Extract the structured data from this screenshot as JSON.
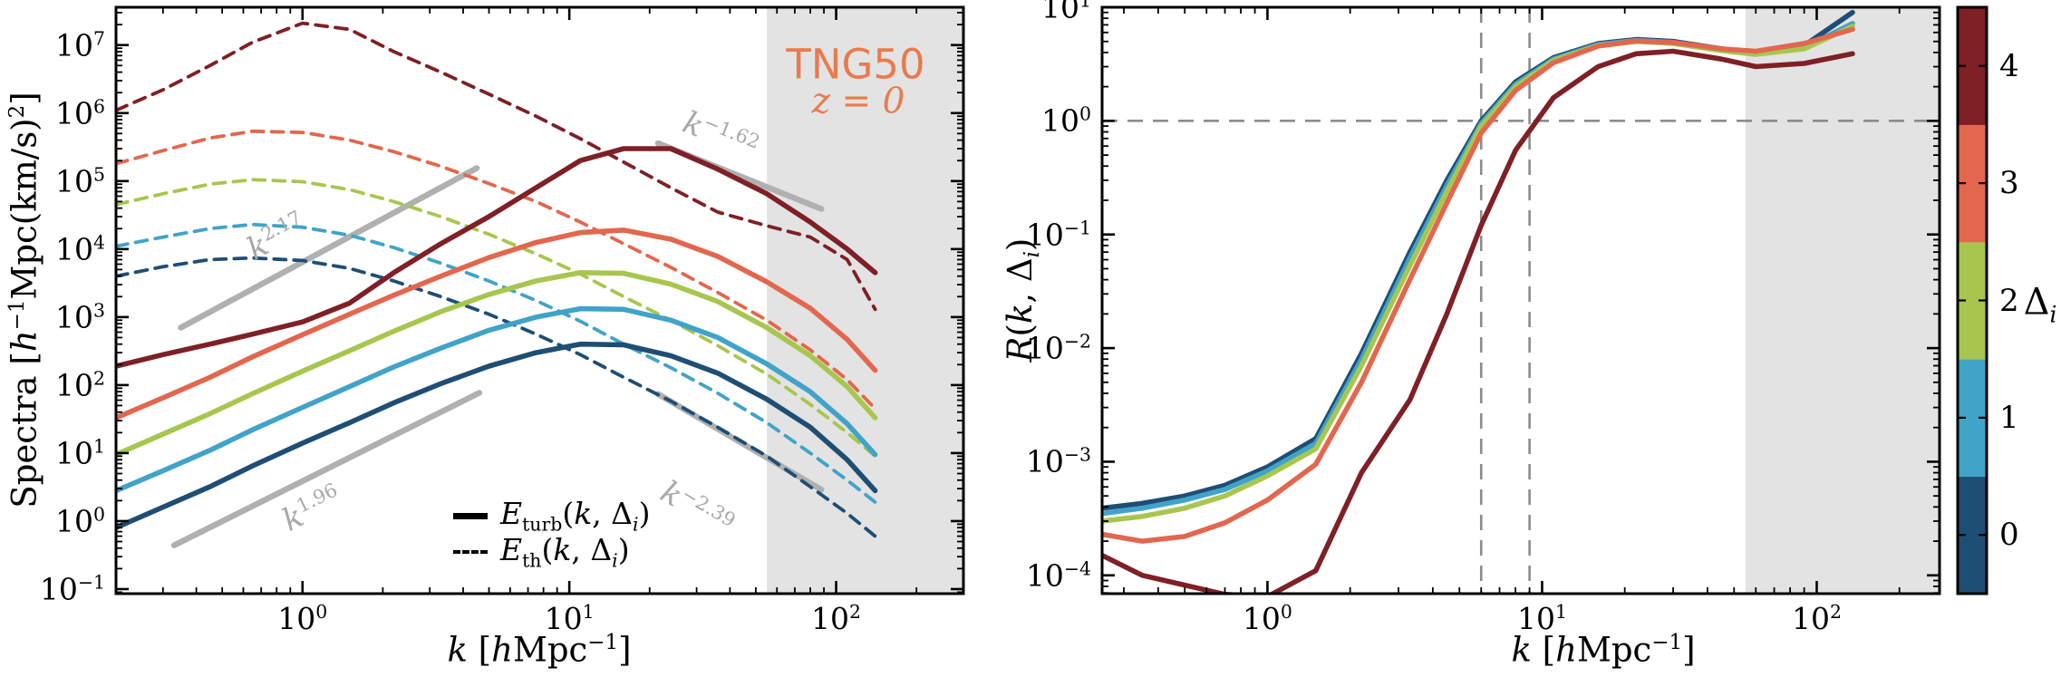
{
  "colors": {
    "delta0": "#1F4E74",
    "delta1": "#41A3C8",
    "delta2": "#A8C64E",
    "delta3": "#E2674E",
    "delta4": "#7F1F26",
    "tng_orange": "#E87B4E",
    "reference_gray": "#B0B0B0",
    "annotation_text_gray": "#A8A8A8",
    "guide_gray": "#8C8C8C",
    "shade_gray": "#E3E3E3",
    "axis_black": "#000000"
  },
  "labels": {
    "tng": "TNG50",
    "redshift": "~[z] = 0"
  },
  "chart_data": [
    {
      "panel": "left",
      "type": "line",
      "x_axis": {
        "label": "~[k] [~[h]Mpc^[−1]]",
        "scale": "log",
        "lim": [
          0.2,
          300
        ],
        "tick_exponents": [
          0,
          1,
          2
        ]
      },
      "y_axis": {
        "label": "Spectra [~[h]^[−1]Mpc(km/s)^[2]]",
        "scale": "log",
        "lim": [
          0.0857,
          36000000.0
        ],
        "tick_exponents": [
          -1,
          0,
          1,
          2,
          3,
          4,
          5,
          6,
          7
        ]
      },
      "shaded_band_k": [
        55,
        300
      ],
      "x": [
        0.2,
        0.3,
        0.45,
        0.65,
        1.0,
        1.5,
        2.2,
        3.3,
        5,
        7.5,
        11,
        16,
        24,
        36,
        55,
        80,
        110,
        140
      ],
      "series": [
        {
          "name": "E_turb delta=0",
          "kind": "E_turb",
          "delta": 0,
          "style": "solid",
          "color": "delta0",
          "values": [
            0.8,
            1.6,
            3.2,
            6.5,
            14,
            28,
            55,
            105,
            190,
            300,
            400,
            390,
            270,
            150,
            62,
            24,
            8,
            2.8
          ]
        },
        {
          "name": "E_turb delta=1",
          "kind": "E_turb",
          "delta": 1,
          "style": "solid",
          "color": "delta1",
          "values": [
            2.8,
            5.5,
            11,
            22,
            47,
            95,
            185,
            350,
            640,
            1000,
            1330,
            1300,
            900,
            500,
            205,
            80,
            27,
            9.5
          ]
        },
        {
          "name": "E_turb delta=2",
          "kind": "E_turb",
          "delta": 2,
          "style": "solid",
          "color": "delta2",
          "values": [
            9.5,
            19,
            38,
            75,
            160,
            320,
            620,
            1200,
            2150,
            3400,
            4500,
            4400,
            3050,
            1700,
            700,
            270,
            95,
            33
          ]
        },
        {
          "name": "E_turb delta=3",
          "kind": "E_turb",
          "delta": 3,
          "style": "solid",
          "color": "delta3",
          "values": [
            33,
            65,
            130,
            260,
            550,
            1100,
            2100,
            4000,
            7500,
            12500,
            17500,
            19000,
            14000,
            7800,
            3300,
            1350,
            470,
            165
          ]
        },
        {
          "name": "E_turb delta=4",
          "kind": "E_turb",
          "delta": 4,
          "style": "solid",
          "color": "delta4",
          "values": [
            190,
            280,
            400,
            560,
            850,
            1600,
            4500,
            12000,
            30000,
            80000,
            200000,
            300000,
            300000,
            150000,
            65000,
            25000,
            10000,
            4500
          ]
        },
        {
          "name": "E_th delta=0",
          "kind": "E_th",
          "delta": 0,
          "style": "dashed",
          "color": "delta0",
          "values": [
            4000,
            5500,
            7000,
            7400,
            6800,
            5200,
            3400,
            2000,
            1100,
            560,
            280,
            130,
            58,
            24,
            9,
            3.2,
            1.3,
            0.6
          ]
        },
        {
          "name": "E_th delta=1",
          "kind": "E_th",
          "delta": 1,
          "style": "dashed",
          "color": "delta1",
          "values": [
            11000,
            15000,
            20000,
            23000,
            21000,
            16000,
            10500,
            6200,
            3400,
            1750,
            870,
            400,
            180,
            76,
            28,
            10,
            4,
            1.9
          ]
        },
        {
          "name": "E_th delta=2",
          "kind": "E_th",
          "delta": 2,
          "style": "dashed",
          "color": "delta2",
          "values": [
            45000,
            65000,
            90000,
            105000,
            98000,
            75000,
            50000,
            30000,
            16500,
            8500,
            4300,
            2000,
            900,
            380,
            145,
            52,
            20,
            9
          ]
        },
        {
          "name": "E_th delta=3",
          "kind": "E_th",
          "delta": 3,
          "style": "dashed",
          "color": "delta3",
          "values": [
            180000,
            280000,
            430000,
            540000,
            520000,
            400000,
            270000,
            165000,
            92000,
            50000,
            25000,
            12000,
            5400,
            2300,
            900,
            330,
            120,
            45
          ]
        },
        {
          "name": "E_th delta=4",
          "kind": "E_th",
          "delta": 4,
          "style": "dashed",
          "color": "delta4",
          "values": [
            1100000,
            2200000,
            5000000,
            11000000,
            21000000,
            17000000,
            8000000,
            4000000,
            1900000,
            900000,
            420000,
            190000,
            80000,
            35000,
            22000,
            15000,
            7000,
            1300
          ]
        }
      ],
      "reference_lines": [
        {
          "label": "~[k]^[2.17]",
          "slope": 2.17,
          "from": [
            0.35,
            700
          ],
          "to": [
            4.5,
            155000
          ],
          "label_at": [
            0.8,
            15500
          ]
        },
        {
          "label": "~[k]^[1.96]",
          "slope": 1.96,
          "from": [
            0.33,
            0.44
          ],
          "to": [
            4.6,
            77
          ],
          "label_at": [
            1.08,
            1.55
          ]
        },
        {
          "label": "~[k]^[−1.62]",
          "slope": -1.62,
          "from": [
            21.5,
            360000
          ],
          "to": [
            88,
            39000
          ],
          "label_at": [
            37,
            470000
          ]
        },
        {
          "label": "~[k]^[−2.39]",
          "slope": -2.39,
          "from": [
            21.5,
            74
          ],
          "to": [
            88,
            2.9
          ],
          "label_at": [
            30,
            1.55
          ]
        }
      ],
      "legend": [
        {
          "style": "solid",
          "label": "~[E]_[turb](~[k], Δ_i[i])"
        },
        {
          "style": "dashed",
          "label": "~[E]_[th](~[k], Δ_i[i])"
        }
      ]
    },
    {
      "panel": "right",
      "type": "line",
      "x_axis": {
        "label": "~[k] [~[h]Mpc^[−1]]",
        "scale": "log",
        "lim": [
          0.25,
          280
        ],
        "tick_exponents": [
          0,
          1,
          2
        ]
      },
      "y_axis": {
        "label": "~[R](~[k], Δ_i[i])",
        "scale": "log",
        "lim": [
          6.9e-05,
          10
        ],
        "tick_exponents": [
          -4,
          -3,
          -2,
          -1,
          0,
          1
        ]
      },
      "shaded_band_k": [
        55,
        280
      ],
      "guides": {
        "horizontal_y": [
          1
        ],
        "vertical_x": [
          6,
          9
        ]
      },
      "x": [
        0.25,
        0.35,
        0.5,
        0.7,
        1.0,
        1.5,
        2.2,
        3.3,
        4.5,
        6,
        8,
        11,
        16,
        22,
        30,
        45,
        60,
        90,
        135
      ],
      "series": [
        {
          "name": "R delta=0",
          "kind": "R",
          "delta": 0,
          "style": "solid",
          "color": "delta0",
          "values": [
            0.00039,
            0.00043,
            0.0005,
            0.00062,
            0.0009,
            0.0016,
            0.009,
            0.07,
            0.3,
            1.0,
            2.2,
            3.6,
            4.8,
            5.2,
            5.0,
            4.3,
            4.0,
            4.6,
            9.0
          ]
        },
        {
          "name": "R delta=1",
          "kind": "R",
          "delta": 1,
          "style": "solid",
          "color": "delta1",
          "values": [
            0.00035,
            0.00039,
            0.00046,
            0.00057,
            0.00083,
            0.00145,
            0.008,
            0.062,
            0.27,
            0.95,
            2.1,
            3.5,
            4.7,
            5.1,
            4.9,
            4.2,
            3.9,
            4.4,
            7.2
          ]
        },
        {
          "name": "R delta=2",
          "kind": "R",
          "delta": 2,
          "style": "solid",
          "color": "delta2",
          "values": [
            0.0003,
            0.00033,
            0.00039,
            0.0005,
            0.00075,
            0.0013,
            0.007,
            0.053,
            0.24,
            0.9,
            2.0,
            3.4,
            4.6,
            5.0,
            4.8,
            4.15,
            3.85,
            4.3,
            6.8
          ]
        },
        {
          "name": "R delta=3",
          "kind": "R",
          "delta": 3,
          "style": "solid",
          "color": "delta3",
          "values": [
            0.00023,
            0.0002,
            0.00022,
            0.00029,
            0.00046,
            0.00095,
            0.005,
            0.04,
            0.19,
            0.78,
            1.85,
            3.25,
            4.55,
            5.05,
            4.9,
            4.3,
            4.1,
            4.8,
            6.4
          ]
        },
        {
          "name": "R delta=4",
          "kind": "R",
          "delta": 4,
          "style": "solid",
          "color": "delta4",
          "values": [
            0.00015,
            0.0001,
            8.2e-05,
            6.8e-05,
            6.5e-05,
            0.00011,
            0.0008,
            0.0035,
            0.02,
            0.12,
            0.55,
            1.6,
            3.0,
            3.9,
            4.1,
            3.5,
            3.0,
            3.2,
            3.9
          ]
        }
      ]
    }
  ],
  "colorbar": {
    "label": "Δ_i[i]",
    "segments": [
      {
        "label": "0",
        "color": "delta0"
      },
      {
        "label": "1",
        "color": "delta1"
      },
      {
        "label": "2",
        "color": "delta2"
      },
      {
        "label": "3",
        "color": "delta3"
      },
      {
        "label": "4",
        "color": "delta4"
      }
    ]
  }
}
